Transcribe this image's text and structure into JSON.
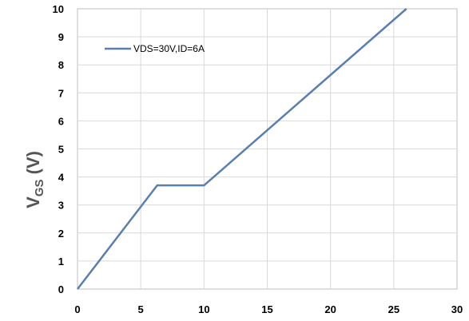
{
  "chart_data": {
    "type": "line",
    "ylabel_main": "V",
    "ylabel_sub": "GS",
    "ylabel_unit": " (V)",
    "xlabel": "",
    "xlim": [
      0,
      30
    ],
    "ylim": [
      0,
      10
    ],
    "x_ticks": [
      "0",
      "5",
      "10",
      "15",
      "20",
      "25",
      "30"
    ],
    "y_ticks": [
      "0",
      "1",
      "2",
      "3",
      "4",
      "5",
      "6",
      "7",
      "8",
      "9",
      "10"
    ],
    "grid": true,
    "legend_position": "top-left",
    "series": [
      {
        "name": "VDS=30V,ID=6A",
        "color": "#5b7fad",
        "x": [
          0,
          6.3,
          10,
          26
        ],
        "y": [
          0,
          3.7,
          3.7,
          10
        ]
      }
    ]
  }
}
